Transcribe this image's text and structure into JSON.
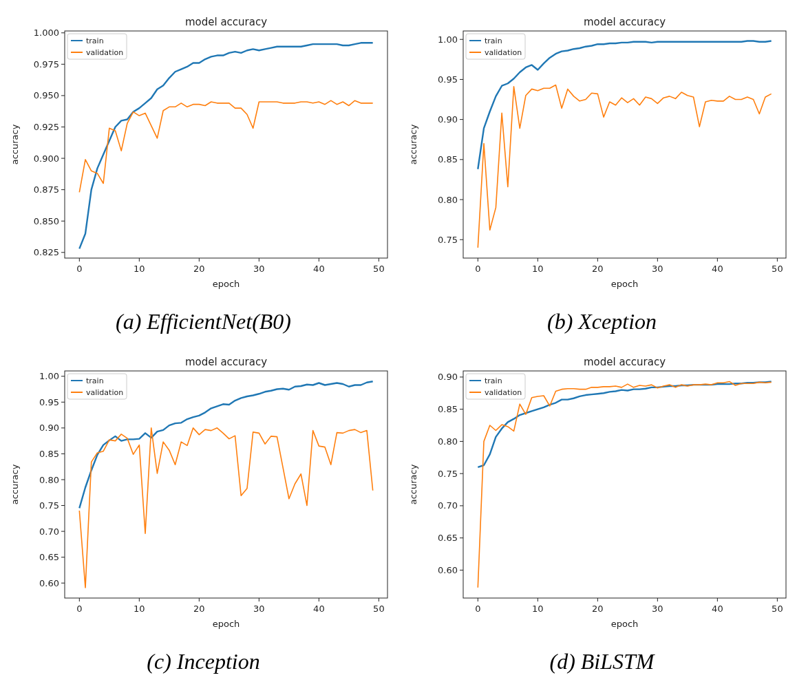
{
  "chart_data": [
    {
      "type": "line",
      "title": "model accuracy",
      "xlabel": "epoch",
      "ylabel": "accuracy",
      "legend": "top left",
      "annotations": [
        "(a) EfficientNet(B0)"
      ],
      "xlim": [
        -2.45,
        51.45
      ],
      "xticks": [
        0,
        10,
        20,
        30,
        40,
        50
      ],
      "ylim": [
        0.8205,
        1.0015
      ],
      "yticks": [
        {
          "value": 0.825,
          "label": "0.825"
        },
        {
          "value": 0.85,
          "label": "0.850"
        },
        {
          "value": 0.875,
          "label": "0.875"
        },
        {
          "value": 0.9,
          "label": "0.900"
        },
        {
          "value": 0.925,
          "label": "0.925"
        },
        {
          "value": 0.95,
          "label": "0.950"
        },
        {
          "value": 0.975,
          "label": "0.975"
        },
        {
          "value": 1,
          "label": "1.000"
        }
      ],
      "x": [
        0,
        1,
        2,
        3,
        4,
        5,
        6,
        7,
        8,
        9,
        10,
        11,
        12,
        13,
        14,
        15,
        16,
        17,
        18,
        19,
        20,
        21,
        22,
        23,
        24,
        25,
        26,
        27,
        28,
        29,
        30,
        31,
        32,
        33,
        34,
        35,
        36,
        37,
        38,
        39,
        40,
        41,
        42,
        43,
        44,
        45,
        46,
        47,
        48,
        49
      ],
      "series": [
        {
          "name": "train",
          "color": "#1f77b4",
          "values": [
            0.828,
            0.84,
            0.875,
            0.892,
            0.903,
            0.914,
            0.925,
            0.93,
            0.931,
            0.937,
            0.94,
            0.944,
            0.948,
            0.955,
            0.958,
            0.964,
            0.969,
            0.971,
            0.973,
            0.976,
            0.976,
            0.979,
            0.981,
            0.982,
            0.982,
            0.984,
            0.985,
            0.984,
            0.986,
            0.987,
            0.986,
            0.987,
            0.988,
            0.989,
            0.989,
            0.989,
            0.989,
            0.989,
            0.99,
            0.991,
            0.991,
            0.991,
            0.991,
            0.991,
            0.99,
            0.99,
            0.991,
            0.992,
            0.992,
            0.992
          ]
        },
        {
          "name": "validation",
          "color": "#ff7f0e",
          "values": [
            0.873,
            0.899,
            0.89,
            0.888,
            0.88,
            0.924,
            0.922,
            0.906,
            0.928,
            0.937,
            0.934,
            0.936,
            0.926,
            0.916,
            0.938,
            0.941,
            0.941,
            0.944,
            0.941,
            0.943,
            0.943,
            0.942,
            0.945,
            0.944,
            0.944,
            0.944,
            0.94,
            0.94,
            0.935,
            0.924,
            0.945,
            0.945,
            0.945,
            0.945,
            0.944,
            0.944,
            0.944,
            0.945,
            0.945,
            0.944,
            0.945,
            0.943,
            0.946,
            0.943,
            0.945,
            0.942,
            0.946,
            0.944,
            0.944,
            0.944
          ]
        }
      ]
    },
    {
      "type": "line",
      "title": "model accuracy",
      "xlabel": "epoch",
      "ylabel": "accuracy",
      "legend": "top left",
      "annotations": [
        "(b) Xception"
      ],
      "xlim": [
        -2.45,
        51.45
      ],
      "xticks": [
        0,
        10,
        20,
        30,
        40,
        50
      ],
      "ylim": [
        0.727,
        1.0105
      ],
      "yticks": [
        {
          "value": 0.75,
          "label": "0.75"
        },
        {
          "value": 0.8,
          "label": "0.80"
        },
        {
          "value": 0.85,
          "label": "0.85"
        },
        {
          "value": 0.9,
          "label": "0.90"
        },
        {
          "value": 0.95,
          "label": "0.95"
        },
        {
          "value": 1,
          "label": "1.00"
        }
      ],
      "x": [
        0,
        1,
        2,
        3,
        4,
        5,
        6,
        7,
        8,
        9,
        10,
        11,
        12,
        13,
        14,
        15,
        16,
        17,
        18,
        19,
        20,
        21,
        22,
        23,
        24,
        25,
        26,
        27,
        28,
        29,
        30,
        31,
        32,
        33,
        34,
        35,
        36,
        37,
        38,
        39,
        40,
        41,
        42,
        43,
        44,
        45,
        46,
        47,
        48,
        49
      ],
      "series": [
        {
          "name": "train",
          "color": "#1f77b4",
          "values": [
            0.838,
            0.889,
            0.91,
            0.929,
            0.942,
            0.945,
            0.951,
            0.959,
            0.965,
            0.968,
            0.962,
            0.97,
            0.977,
            0.982,
            0.985,
            0.986,
            0.988,
            0.989,
            0.991,
            0.992,
            0.994,
            0.994,
            0.995,
            0.995,
            0.996,
            0.996,
            0.997,
            0.997,
            0.997,
            0.996,
            0.997,
            0.997,
            0.997,
            0.997,
            0.997,
            0.997,
            0.997,
            0.997,
            0.997,
            0.997,
            0.997,
            0.997,
            0.997,
            0.997,
            0.997,
            0.998,
            0.998,
            0.997,
            0.997,
            0.998
          ]
        },
        {
          "name": "validation",
          "color": "#ff7f0e",
          "values": [
            0.74,
            0.87,
            0.762,
            0.79,
            0.908,
            0.816,
            0.941,
            0.889,
            0.93,
            0.938,
            0.936,
            0.939,
            0.939,
            0.943,
            0.914,
            0.938,
            0.929,
            0.923,
            0.925,
            0.933,
            0.932,
            0.903,
            0.922,
            0.918,
            0.927,
            0.921,
            0.926,
            0.918,
            0.928,
            0.926,
            0.92,
            0.927,
            0.929,
            0.926,
            0.934,
            0.93,
            0.928,
            0.891,
            0.922,
            0.924,
            0.923,
            0.923,
            0.929,
            0.925,
            0.925,
            0.928,
            0.925,
            0.907,
            0.928,
            0.932
          ]
        }
      ]
    },
    {
      "type": "line",
      "title": "model accuracy",
      "xlabel": "epoch",
      "ylabel": "accuracy",
      "legend": "top left",
      "annotations": [
        "(c) Inception"
      ],
      "xlim": [
        -2.45,
        51.45
      ],
      "xticks": [
        0,
        10,
        20,
        30,
        40,
        50
      ],
      "ylim": [
        0.571,
        1.0103
      ],
      "yticks": [
        {
          "value": 0.6,
          "label": "0.60"
        },
        {
          "value": 0.65,
          "label": "0.65"
        },
        {
          "value": 0.7,
          "label": "0.70"
        },
        {
          "value": 0.75,
          "label": "0.75"
        },
        {
          "value": 0.8,
          "label": "0.80"
        },
        {
          "value": 0.85,
          "label": "0.85"
        },
        {
          "value": 0.9,
          "label": "0.90"
        },
        {
          "value": 0.95,
          "label": "0.95"
        },
        {
          "value": 1,
          "label": "1.00"
        }
      ],
      "x": [
        0,
        1,
        2,
        3,
        4,
        5,
        6,
        7,
        8,
        9,
        10,
        11,
        12,
        13,
        14,
        15,
        16,
        17,
        18,
        19,
        20,
        21,
        22,
        23,
        24,
        25,
        26,
        27,
        28,
        29,
        30,
        31,
        32,
        33,
        34,
        35,
        36,
        37,
        38,
        39,
        40,
        41,
        42,
        43,
        44,
        45,
        46,
        47,
        48,
        49
      ],
      "series": [
        {
          "name": "train",
          "color": "#1f77b4",
          "values": [
            0.745,
            0.785,
            0.818,
            0.848,
            0.867,
            0.876,
            0.884,
            0.875,
            0.878,
            0.878,
            0.879,
            0.89,
            0.881,
            0.893,
            0.896,
            0.905,
            0.909,
            0.91,
            0.917,
            0.921,
            0.924,
            0.93,
            0.938,
            0.942,
            0.946,
            0.945,
            0.953,
            0.958,
            0.961,
            0.963,
            0.966,
            0.97,
            0.972,
            0.975,
            0.976,
            0.974,
            0.98,
            0.981,
            0.984,
            0.983,
            0.987,
            0.983,
            0.985,
            0.987,
            0.985,
            0.98,
            0.983,
            0.983,
            0.988,
            0.99
          ]
        },
        {
          "name": "validation",
          "color": "#ff7f0e",
          "values": [
            0.74,
            0.591,
            0.834,
            0.852,
            0.855,
            0.877,
            0.875,
            0.888,
            0.88,
            0.849,
            0.867,
            0.696,
            0.9,
            0.812,
            0.873,
            0.857,
            0.829,
            0.873,
            0.866,
            0.9,
            0.887,
            0.897,
            0.895,
            0.9,
            0.89,
            0.879,
            0.885,
            0.769,
            0.783,
            0.892,
            0.89,
            0.869,
            0.884,
            0.883,
            0.823,
            0.763,
            0.792,
            0.811,
            0.75,
            0.895,
            0.865,
            0.863,
            0.829,
            0.891,
            0.89,
            0.895,
            0.897,
            0.891,
            0.895,
            0.779
          ]
        }
      ]
    },
    {
      "type": "line",
      "title": "model accuracy",
      "xlabel": "epoch",
      "ylabel": "accuracy",
      "legend": "top left",
      "annotations": [
        "(d) BiLSTM"
      ],
      "xlim": [
        -2.45,
        51.45
      ],
      "xticks": [
        0,
        10,
        20,
        30,
        40,
        50
      ],
      "ylim": [
        0.5566,
        0.9095
      ],
      "yticks": [
        {
          "value": 0.6,
          "label": "0.60"
        },
        {
          "value": 0.65,
          "label": "0.65"
        },
        {
          "value": 0.7,
          "label": "0.70"
        },
        {
          "value": 0.75,
          "label": "0.75"
        },
        {
          "value": 0.8,
          "label": "0.80"
        },
        {
          "value": 0.85,
          "label": "0.85"
        },
        {
          "value": 0.9,
          "label": "0.90"
        }
      ],
      "x": [
        0,
        1,
        2,
        3,
        4,
        5,
        6,
        7,
        8,
        9,
        10,
        11,
        12,
        13,
        14,
        15,
        16,
        17,
        18,
        19,
        20,
        21,
        22,
        23,
        24,
        25,
        26,
        27,
        28,
        29,
        30,
        31,
        32,
        33,
        34,
        35,
        36,
        37,
        38,
        39,
        40,
        41,
        42,
        43,
        44,
        45,
        46,
        47,
        48,
        49
      ],
      "series": [
        {
          "name": "train",
          "color": "#1f77b4",
          "values": [
            0.76,
            0.763,
            0.78,
            0.807,
            0.82,
            0.83,
            0.835,
            0.841,
            0.844,
            0.847,
            0.85,
            0.853,
            0.857,
            0.86,
            0.865,
            0.865,
            0.867,
            0.87,
            0.872,
            0.873,
            0.874,
            0.875,
            0.877,
            0.878,
            0.88,
            0.879,
            0.881,
            0.881,
            0.882,
            0.884,
            0.884,
            0.885,
            0.886,
            0.886,
            0.887,
            0.887,
            0.888,
            0.888,
            0.888,
            0.888,
            0.889,
            0.889,
            0.889,
            0.89,
            0.89,
            0.891,
            0.891,
            0.892,
            0.892,
            0.893
          ]
        },
        {
          "name": "validation",
          "color": "#ff7f0e",
          "values": [
            0.573,
            0.8,
            0.825,
            0.817,
            0.826,
            0.823,
            0.816,
            0.858,
            0.842,
            0.868,
            0.87,
            0.871,
            0.855,
            0.878,
            0.881,
            0.882,
            0.882,
            0.881,
            0.881,
            0.884,
            0.884,
            0.885,
            0.885,
            0.886,
            0.884,
            0.889,
            0.884,
            0.887,
            0.886,
            0.888,
            0.883,
            0.886,
            0.888,
            0.884,
            0.888,
            0.886,
            0.888,
            0.888,
            0.889,
            0.888,
            0.891,
            0.891,
            0.893,
            0.887,
            0.89,
            0.89,
            0.89,
            0.892,
            0.891,
            0.892
          ]
        }
      ]
    }
  ]
}
